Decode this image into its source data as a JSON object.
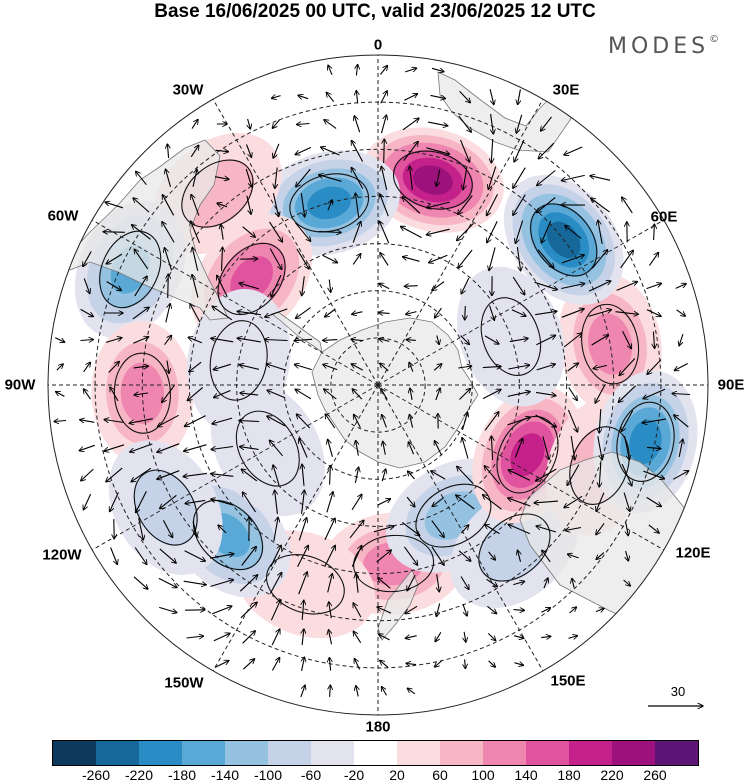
{
  "title": "Base 16/06/2025 00 UTC, valid 23/06/2025 12 UTC",
  "brand": "MODES",
  "brand_mark": "©",
  "longitude_labels": {
    "0": "0",
    "30E": "30E",
    "60E": "60E",
    "90E": "90E",
    "120E": "120E",
    "150E": "150E",
    "180": "180",
    "150W": "150W",
    "120W": "120W",
    "90W": "90W",
    "60W": "60W",
    "30W": "30W"
  },
  "reference_vector": "30",
  "colorbar": {
    "colors": [
      "#0d3a5c",
      "#16679a",
      "#2a8cc4",
      "#5aa8d6",
      "#96c2e2",
      "#c5d2e8",
      "#e3e3f0",
      "#ffffff",
      "#fbdde0",
      "#f7b6c4",
      "#ef86b0",
      "#e0549f",
      "#c5218a",
      "#9c117c",
      "#5e1578"
    ],
    "ticks": [
      "-260",
      "-220",
      "-180",
      "-140",
      "-100",
      "-60",
      "-20",
      "20",
      "60",
      "100",
      "140",
      "180",
      "220",
      "260"
    ]
  },
  "anomalies": [
    {
      "lon": 5,
      "lat": -52,
      "value": 120
    },
    {
      "lon": -20,
      "lat": -45,
      "value": 40
    },
    {
      "lon": 30,
      "lat": -58,
      "value": -100
    },
    {
      "lon": 40,
      "lat": -45,
      "value": -60
    },
    {
      "lon": 65,
      "lat": -55,
      "value": 190
    },
    {
      "lon": 70,
      "lat": -40,
      "value": 60
    },
    {
      "lon": 100,
      "lat": -40,
      "value": 120
    },
    {
      "lon": 78,
      "lat": -32,
      "value": -180
    },
    {
      "lon": 128,
      "lat": -40,
      "value": -220
    },
    {
      "lon": 165,
      "lat": -45,
      "value": 230
    },
    {
      "lon": -165,
      "lat": -50,
      "value": -180
    },
    {
      "lon": -140,
      "lat": -37,
      "value": 80
    },
    {
      "lon": -130,
      "lat": -55,
      "value": 160
    },
    {
      "lon": -115,
      "lat": -32,
      "value": -140
    },
    {
      "lon": -88,
      "lat": -40,
      "value": 100
    },
    {
      "lon": -45,
      "lat": -45,
      "value": -150
    },
    {
      "lon": -60,
      "lat": -38,
      "value": -80
    },
    {
      "lon": -60,
      "lat": -63,
      "value": -40
    },
    {
      "lon": 110,
      "lat": -60,
      "value": -40
    },
    {
      "lon": -100,
      "lat": -60,
      "value": -40
    }
  ]
}
